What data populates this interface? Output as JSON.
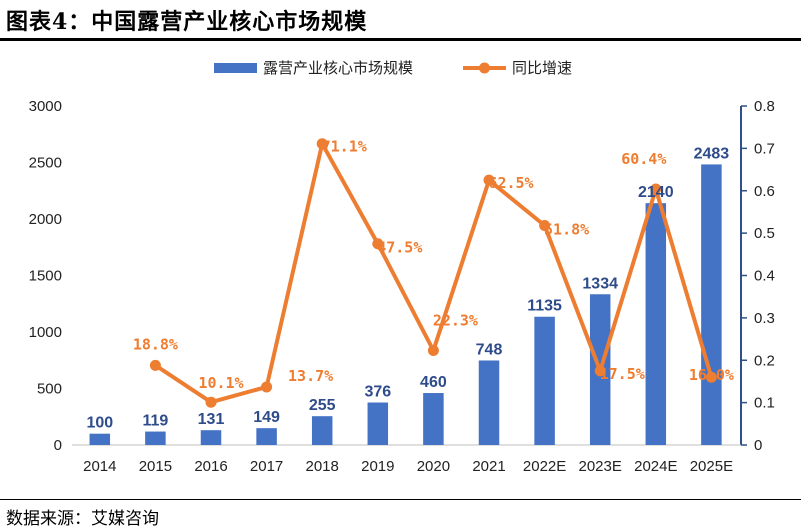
{
  "title": "图表4：中国露营产业核心市场规模",
  "source": "数据来源：艾媒咨询",
  "colors": {
    "bar": "#4472c4",
    "line": "#ed7d31",
    "bar_label": "#2e4b8a",
    "axis_right": "#2f4f86"
  },
  "chart_data": {
    "type": "bar",
    "categories": [
      "2014",
      "2015",
      "2016",
      "2017",
      "2018",
      "2019",
      "2020",
      "2021",
      "2022E",
      "2023E",
      "2024E",
      "2025E"
    ],
    "series": [
      {
        "name": "露营产业核心市场规模",
        "type": "bar",
        "axis": "left",
        "values": [
          100,
          119,
          131,
          149,
          255,
          376,
          460,
          748,
          1135,
          1334,
          2140,
          2483
        ],
        "labels": [
          "100",
          "119",
          "131",
          "149",
          "255",
          "376",
          "460",
          "748",
          "1135",
          "1334",
          "2140",
          "2483"
        ]
      },
      {
        "name": "同比增速",
        "type": "line",
        "axis": "right",
        "values": [
          null,
          0.188,
          0.101,
          0.137,
          0.711,
          0.475,
          0.223,
          0.625,
          0.518,
          0.175,
          0.604,
          0.16
        ],
        "labels": [
          "",
          "18.8%",
          "10.1%",
          "13.7%",
          "71.1%",
          "47.5%",
          "22.3%",
          "62.5%",
          "51.8%",
          "17.5%",
          "60.4%",
          "16.0%"
        ]
      }
    ],
    "y_left": {
      "lim": [
        0,
        3000
      ],
      "ticks": [
        "0",
        "500",
        "1000",
        "1500",
        "2000",
        "2500",
        "3000"
      ]
    },
    "y_right": {
      "lim": [
        0,
        0.8
      ],
      "ticks": [
        "0",
        "0.1",
        "0.2",
        "0.3",
        "0.4",
        "0.5",
        "0.6",
        "0.7",
        "0.8"
      ]
    },
    "legend": "top-center",
    "grid": false
  }
}
